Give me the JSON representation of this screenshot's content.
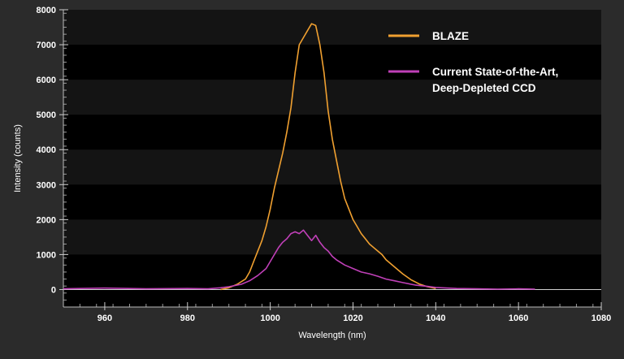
{
  "chart_data": {
    "type": "line",
    "xlabel": "Wavelength (nm)",
    "ylabel": "Intensity (counts)",
    "xlim": [
      950,
      1080
    ],
    "ylim": [
      -500,
      8000
    ],
    "x_ticks": [
      960,
      980,
      1000,
      1020,
      1040,
      1060,
      1080
    ],
    "y_ticks": [
      0,
      1000,
      2000,
      3000,
      4000,
      5000,
      6000,
      7000,
      8000
    ],
    "grid": "horizontal bands",
    "legend_position": "top-right",
    "series": [
      {
        "name": "BLAZE",
        "color": "#f0a030",
        "x": [
          988,
          990,
          992,
          994,
          995,
          996,
          997,
          998,
          999,
          1000,
          1001,
          1002,
          1003,
          1004,
          1005,
          1006,
          1007,
          1008,
          1009,
          1010,
          1011,
          1012,
          1013,
          1014,
          1015,
          1016,
          1017,
          1018,
          1019,
          1020,
          1021,
          1022,
          1023,
          1024,
          1025,
          1026,
          1027,
          1028,
          1030,
          1032,
          1034,
          1036,
          1038,
          1040
        ],
        "values": [
          0,
          50,
          150,
          300,
          500,
          800,
          1100,
          1400,
          1800,
          2300,
          2900,
          3400,
          3900,
          4500,
          5200,
          6200,
          7000,
          7200,
          7400,
          7600,
          7550,
          7000,
          6200,
          5100,
          4300,
          3700,
          3100,
          2600,
          2300,
          2000,
          1800,
          1600,
          1450,
          1300,
          1200,
          1100,
          1000,
          850,
          650,
          450,
          280,
          160,
          80,
          30
        ]
      },
      {
        "name": "Current State-of-the-Art,\nDeep-Depleted CCD",
        "color": "#c040b8",
        "x": [
          950,
          960,
          970,
          980,
          985,
          988,
          990,
          993,
          995,
          997,
          999,
          1000,
          1001,
          1002,
          1003,
          1004,
          1005,
          1006,
          1007,
          1008,
          1009,
          1010,
          1011,
          1012,
          1013,
          1014,
          1015,
          1016,
          1018,
          1020,
          1022,
          1024,
          1026,
          1028,
          1030,
          1032,
          1035,
          1038,
          1040,
          1045,
          1050,
          1055,
          1060,
          1064
        ],
        "values": [
          20,
          40,
          20,
          30,
          20,
          50,
          80,
          150,
          250,
          400,
          600,
          800,
          1000,
          1200,
          1350,
          1450,
          1600,
          1650,
          1600,
          1700,
          1550,
          1400,
          1550,
          1350,
          1200,
          1100,
          950,
          850,
          700,
          600,
          500,
          450,
          380,
          300,
          250,
          200,
          130,
          90,
          60,
          30,
          20,
          10,
          20,
          10
        ]
      }
    ]
  }
}
